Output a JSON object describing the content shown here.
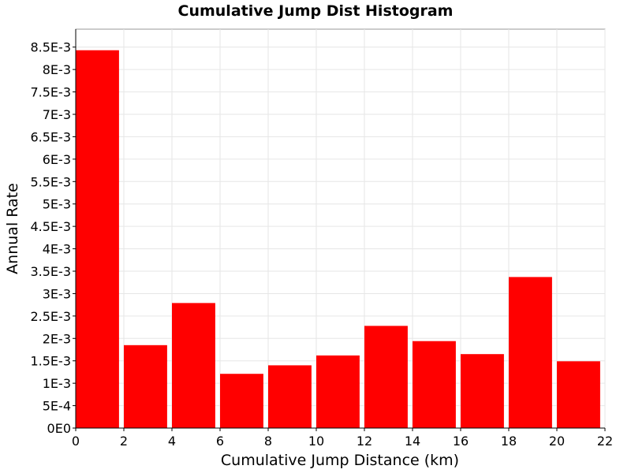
{
  "chart_data": {
    "type": "bar",
    "title": "Cumulative Jump Dist Histogram",
    "xlabel": "Cumulative Jump Distance (km)",
    "ylabel": "Annual Rate",
    "xlim": [
      0,
      22
    ],
    "ylim": [
      0,
      0.0089
    ],
    "x_ticks": [
      0,
      2,
      4,
      6,
      8,
      10,
      12,
      14,
      16,
      18,
      20,
      22
    ],
    "x_tick_labels": [
      "0",
      "2",
      "4",
      "6",
      "8",
      "10",
      "12",
      "14",
      "16",
      "18",
      "20",
      "22"
    ],
    "y_ticks": [
      0,
      0.0005,
      0.001,
      0.0015,
      0.002,
      0.0025,
      0.003,
      0.0035,
      0.004,
      0.0045,
      0.005,
      0.0055,
      0.006,
      0.0065,
      0.007,
      0.0075,
      0.008,
      0.0085
    ],
    "y_tick_labels": [
      "0E0",
      "5E-4",
      "1E-3",
      "1.5E-3",
      "2E-3",
      "2.5E-3",
      "3E-3",
      "3.5E-3",
      "4E-3",
      "4.5E-3",
      "5E-3",
      "5.5E-3",
      "6E-3",
      "6.5E-3",
      "7E-3",
      "7.5E-3",
      "8E-3",
      "8.5E-3"
    ],
    "grid": true,
    "bar_color": "#ff0000",
    "bar_width": 1.8,
    "bins": [
      {
        "x_start": 0,
        "value": 0.00843
      },
      {
        "x_start": 2,
        "value": 0.00185
      },
      {
        "x_start": 4,
        "value": 0.00279
      },
      {
        "x_start": 6,
        "value": 0.00121
      },
      {
        "x_start": 8,
        "value": 0.0014
      },
      {
        "x_start": 10,
        "value": 0.00162
      },
      {
        "x_start": 12,
        "value": 0.00228
      },
      {
        "x_start": 14,
        "value": 0.00194
      },
      {
        "x_start": 16,
        "value": 0.00165
      },
      {
        "x_start": 18,
        "value": 0.00337
      },
      {
        "x_start": 20,
        "value": 0.00149
      }
    ]
  }
}
